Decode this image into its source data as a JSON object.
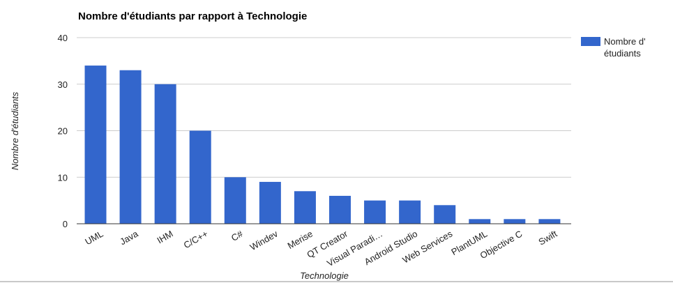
{
  "chart_data": {
    "type": "bar",
    "title": "Nombre d'étudiants par rapport à Technologie",
    "xlabel": "Technologie",
    "ylabel": "Nombre d'étudiants",
    "categories": [
      "UML",
      "Java",
      "IHM",
      "C/C++",
      "C#",
      "Windev",
      "Merise",
      "QT Creator",
      "Visual Paradi…",
      "Android Studio",
      "Web Services",
      "PlantUML",
      "Objective C",
      "Swift"
    ],
    "series": [
      {
        "name": "Nombre d' étudiants",
        "legend_lines": [
          "Nombre d'",
          "étudiants"
        ],
        "values": [
          34,
          33,
          30,
          20,
          10,
          9,
          7,
          6,
          5,
          5,
          4,
          1,
          1,
          1
        ],
        "color": "#3366cc"
      }
    ],
    "ylim": [
      0,
      40
    ],
    "yticks": [
      0,
      10,
      20,
      30,
      40
    ],
    "grid": true,
    "legend": "right"
  }
}
